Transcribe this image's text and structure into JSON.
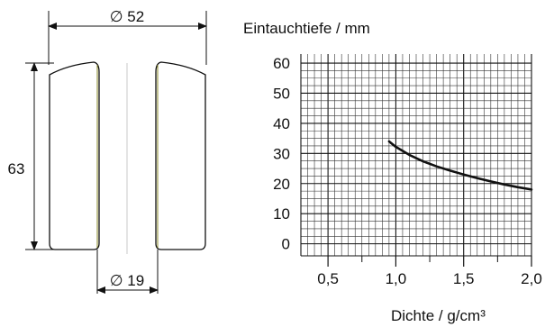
{
  "drawing": {
    "outer_diameter_label": "∅ 52",
    "inner_diameter_label": "∅ 19",
    "height_label": "63"
  },
  "chart_data": {
    "type": "line",
    "ylabel": "Eintauchtiefe / mm",
    "xlabel": "Dichte / g/cm³",
    "xlim": [
      0.3,
      2.0
    ],
    "ylim": [
      -4,
      63
    ],
    "x_ticks": [
      "0,5",
      "1,0",
      "1,5",
      "2,0"
    ],
    "x_tick_values": [
      0.5,
      1.0,
      1.5,
      2.0
    ],
    "y_ticks": [
      "0",
      "10",
      "20",
      "30",
      "40",
      "50",
      "60"
    ],
    "y_tick_values": [
      0,
      10,
      20,
      30,
      40,
      50,
      60
    ],
    "grid": true,
    "series": [
      {
        "x": [
          0.95,
          1.0,
          1.1,
          1.2,
          1.3,
          1.4,
          1.5,
          1.6,
          1.7,
          1.8,
          1.9,
          2.0
        ],
        "y": [
          34.0,
          32.2,
          29.5,
          27.4,
          25.7,
          24.3,
          23.0,
          21.8,
          20.7,
          19.7,
          18.8,
          18.0
        ]
      }
    ]
  },
  "colors": {
    "line": "#111111",
    "grid": "#333333",
    "wall_accent": "#8a8a2a"
  }
}
